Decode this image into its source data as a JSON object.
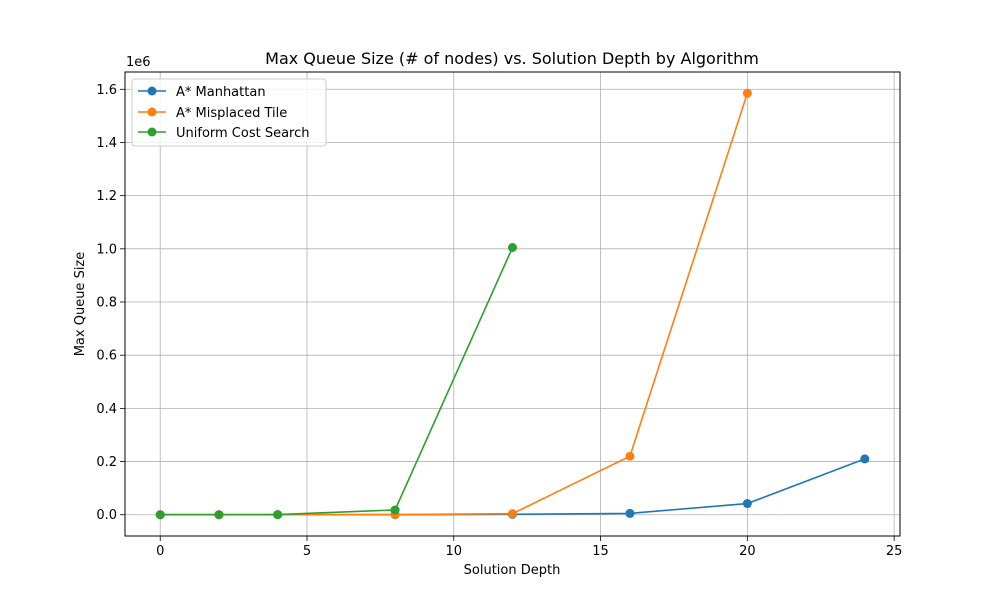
{
  "chart_data": {
    "type": "line",
    "title": "Max Queue Size (# of nodes) vs. Solution Depth by Algorithm",
    "xlabel": "Solution Depth",
    "ylabel": "Max Queue Size",
    "y_offset_label": "1e6",
    "xlim": [
      -1.2,
      25.2
    ],
    "ylim": [
      -80000,
      1665000
    ],
    "x_ticks": [
      0,
      5,
      10,
      15,
      20,
      25
    ],
    "y_ticks": [
      0,
      200000,
      400000,
      600000,
      800000,
      1000000,
      1200000,
      1400000,
      1600000
    ],
    "y_tick_labels": [
      "0.0",
      "0.2",
      "0.4",
      "0.6",
      "0.8",
      "1.0",
      "1.2",
      "1.4",
      "1.6"
    ],
    "grid": true,
    "legend_position": "top-left",
    "series": [
      {
        "name": "A* Manhattan",
        "color": "#1f77b4",
        "x": [
          0,
          2,
          4,
          8,
          12,
          16,
          20,
          24
        ],
        "y": [
          0,
          2,
          10,
          200,
          1500,
          5000,
          42000,
          210000
        ]
      },
      {
        "name": "A* Misplaced Tile",
        "color": "#ff7f0e",
        "x": [
          0,
          2,
          4,
          8,
          12,
          16,
          20
        ],
        "y": [
          0,
          3,
          20,
          800,
          4000,
          220000,
          1585000
        ]
      },
      {
        "name": "Uniform Cost Search",
        "color": "#2ca02c",
        "x": [
          0,
          2,
          4,
          8,
          12
        ],
        "y": [
          0,
          20,
          500,
          18000,
          1005000
        ]
      }
    ]
  }
}
